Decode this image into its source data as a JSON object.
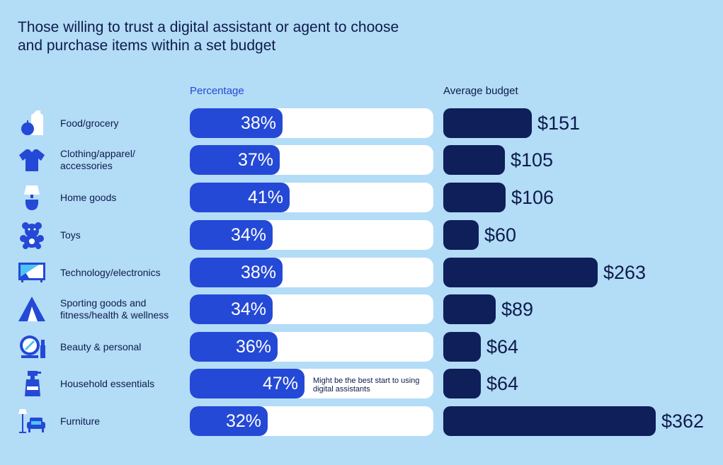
{
  "title": "Those willing to trust a digital assistant or agent to choose and purchase items within a set budget",
  "colors": {
    "background": "#b3dcf7",
    "percentage_bar": "#2449d6",
    "budget_bar": "#0e1f5a",
    "track": "#ffffff",
    "text": "#0d1b4c"
  },
  "chart_data": {
    "type": "bar",
    "orientation": "horizontal",
    "title": "Those willing to trust a digital assistant or agent to choose and purchase items within a set budget",
    "series": [
      {
        "name": "Percentage",
        "unit": "%",
        "xlim": [
          0,
          100
        ],
        "values": [
          38,
          37,
          41,
          34,
          38,
          34,
          36,
          47,
          32
        ]
      },
      {
        "name": "Average budget",
        "unit": "$",
        "values": [
          151,
          105,
          106,
          60,
          263,
          89,
          64,
          64,
          362
        ]
      }
    ],
    "categories": [
      {
        "label": "Food/grocery",
        "icon": "grocery-icon",
        "pct_label": "38%",
        "budget_label": "$151"
      },
      {
        "label": "Clothing/apparel/ accessories",
        "icon": "tshirt-icon",
        "pct_label": "37%",
        "budget_label": "$105"
      },
      {
        "label": "Home goods",
        "icon": "lamp-icon",
        "pct_label": "41%",
        "budget_label": "$106"
      },
      {
        "label": "Toys",
        "icon": "teddy-bear-icon",
        "pct_label": "34%",
        "budget_label": "$60"
      },
      {
        "label": "Technology/electronics",
        "icon": "tv-icon",
        "pct_label": "38%",
        "budget_label": "$263"
      },
      {
        "label": "Sporting goods and fitness/health & wellness",
        "icon": "tent-icon",
        "pct_label": "34%",
        "budget_label": "$89"
      },
      {
        "label": "Beauty & personal",
        "icon": "mirror-icon",
        "pct_label": "36%",
        "budget_label": "$64"
      },
      {
        "label": "Household essentials",
        "icon": "spray-bottle-icon",
        "pct_label": "47%",
        "budget_label": "$64",
        "note": "Might be the best start to using digital assistants"
      },
      {
        "label": "Furniture",
        "icon": "armchair-icon",
        "pct_label": "32%",
        "budget_label": "$362"
      }
    ]
  }
}
